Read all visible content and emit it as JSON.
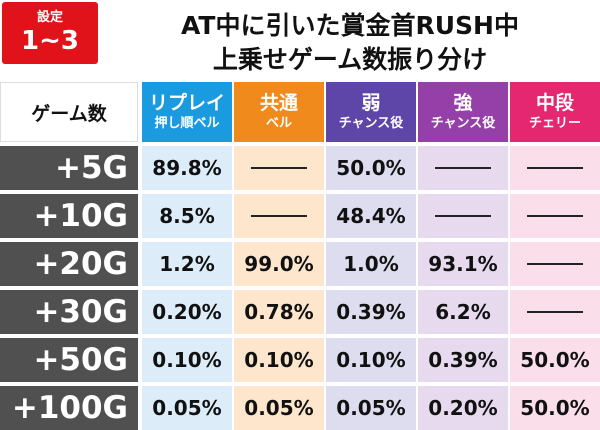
{
  "header": {
    "badge_label": "設定",
    "badge_value": "1~3",
    "title": [
      "AT中に引いた賞金首RUSH中",
      "上乗せゲーム数振り分け"
    ]
  },
  "table": {
    "corner": "ゲーム数",
    "columns": [
      [
        "リプレイ",
        "押し順ベル"
      ],
      [
        "共通",
        "ベル"
      ],
      [
        "弱",
        "チャンス役"
      ],
      [
        "強",
        "チャンス役"
      ],
      [
        "中段",
        "チェリー"
      ]
    ],
    "rows": [
      {
        "label": "+5G",
        "cells": [
          "89.8%",
          null,
          "50.0%",
          null,
          null
        ]
      },
      {
        "label": "+10G",
        "cells": [
          "8.5%",
          null,
          "48.4%",
          null,
          null
        ]
      },
      {
        "label": "+20G",
        "cells": [
          "1.2%",
          "99.0%",
          "1.0%",
          "93.1%",
          null
        ]
      },
      {
        "label": "+30G",
        "cells": [
          "0.20%",
          "0.78%",
          "0.39%",
          "6.2%",
          null
        ]
      },
      {
        "label": "+50G",
        "cells": [
          "0.10%",
          "0.10%",
          "0.10%",
          "0.39%",
          "50.0%"
        ]
      },
      {
        "label": "+100G",
        "cells": [
          "0.05%",
          "0.05%",
          "0.05%",
          "0.20%",
          "50.0%"
        ]
      }
    ]
  }
}
